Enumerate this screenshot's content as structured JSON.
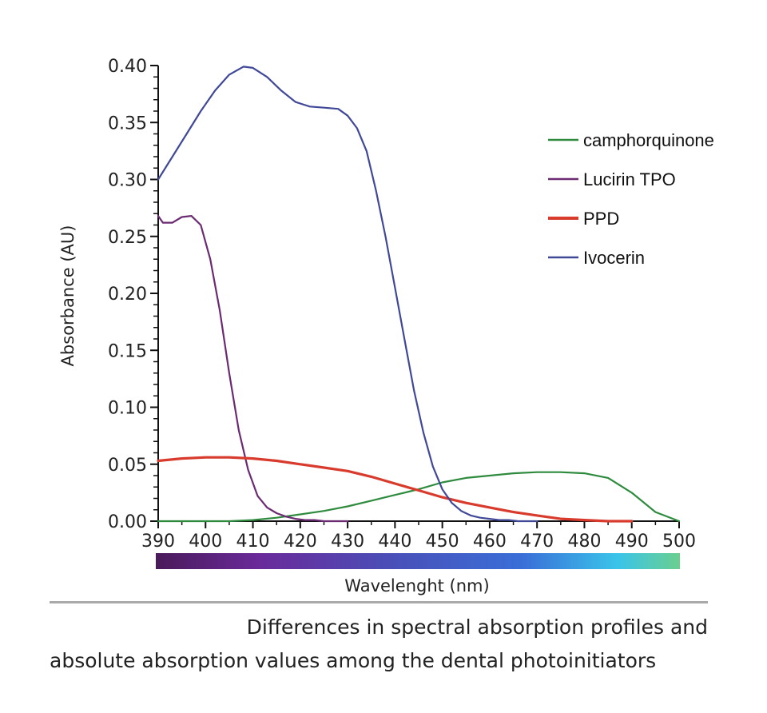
{
  "chart_data": {
    "type": "line",
    "xlabel": "Wavelenght (nm)",
    "ylabel": "Absorbance (AU)",
    "xlim": [
      390,
      500
    ],
    "ylim": [
      0,
      0.4
    ],
    "x_ticks": [
      "390",
      "400",
      "410",
      "420",
      "430",
      "440",
      "450",
      "460",
      "470",
      "480",
      "490",
      "500"
    ],
    "y_ticks": [
      "0.00",
      "0.05",
      "0.10",
      "0.15",
      "0.20",
      "0.25",
      "0.30",
      "0.35",
      "0.40"
    ],
    "legend_position": "top-right",
    "spectrum_bar": true,
    "series": [
      {
        "name": "camphorquinone",
        "color": "#2e8b3e",
        "x": [
          390,
          400,
          405,
          410,
          415,
          420,
          425,
          430,
          435,
          440,
          445,
          450,
          455,
          460,
          465,
          470,
          475,
          480,
          485,
          490,
          495,
          500
        ],
        "y": [
          0,
          0,
          0,
          0.001,
          0.003,
          0.006,
          0.009,
          0.013,
          0.018,
          0.023,
          0.028,
          0.034,
          0.038,
          0.04,
          0.042,
          0.043,
          0.043,
          0.042,
          0.038,
          0.025,
          0.008,
          0
        ]
      },
      {
        "name": "Lucirin TPO",
        "color": "#6b2a72",
        "x": [
          390,
          391,
          393,
          395,
          397,
          399,
          401,
          403,
          405,
          407,
          409,
          411,
          413,
          415,
          417,
          419,
          421,
          423,
          425,
          427,
          430
        ],
        "y": [
          0.268,
          0.262,
          0.262,
          0.267,
          0.268,
          0.26,
          0.23,
          0.185,
          0.13,
          0.08,
          0.045,
          0.022,
          0.012,
          0.007,
          0.004,
          0.002,
          0.001,
          0.001,
          0,
          0,
          0
        ]
      },
      {
        "name": "PPD",
        "color": "#d83a2c",
        "x": [
          390,
          395,
          400,
          405,
          410,
          415,
          420,
          425,
          430,
          435,
          440,
          445,
          450,
          455,
          460,
          465,
          470,
          475,
          480,
          485,
          490
        ],
        "y": [
          0.053,
          0.055,
          0.056,
          0.056,
          0.055,
          0.053,
          0.05,
          0.047,
          0.044,
          0.039,
          0.033,
          0.027,
          0.021,
          0.016,
          0.012,
          0.008,
          0.005,
          0.002,
          0.001,
          0,
          0
        ]
      },
      {
        "name": "Ivocerin",
        "color": "#404898",
        "x": [
          390,
          393,
          396,
          399,
          402,
          405,
          408,
          410,
          413,
          416,
          419,
          422,
          425,
          428,
          430,
          432,
          434,
          436,
          438,
          440,
          442,
          444,
          446,
          448,
          450,
          452,
          454,
          456,
          458,
          460,
          462,
          464,
          466,
          468,
          470
        ],
        "y": [
          0.3,
          0.32,
          0.34,
          0.36,
          0.378,
          0.392,
          0.399,
          0.398,
          0.39,
          0.378,
          0.368,
          0.364,
          0.363,
          0.362,
          0.356,
          0.345,
          0.325,
          0.29,
          0.25,
          0.205,
          0.16,
          0.115,
          0.078,
          0.048,
          0.028,
          0.016,
          0.009,
          0.005,
          0.003,
          0.002,
          0.001,
          0.001,
          0,
          0,
          0
        ]
      }
    ]
  },
  "caption": {
    "line1": "Differences in spectral absorption profiles and",
    "line2": "absolute absorption values among the dental photoinitiators"
  }
}
